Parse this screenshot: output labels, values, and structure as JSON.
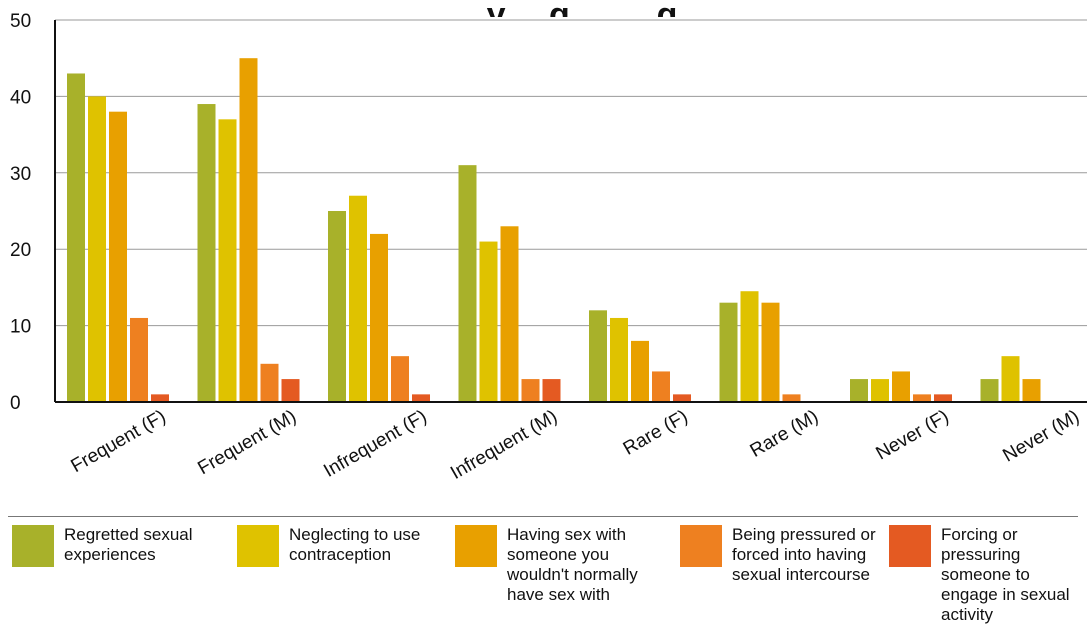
{
  "chart_data": {
    "type": "bar",
    "title": "…y …g … …g",
    "categories": [
      "Frequent (F)",
      "Frequent (M)",
      "Infrequent (F)",
      "Infrequent (M)",
      "Rare (F)",
      "Rare (M)",
      "Never (F)",
      "Never (M)"
    ],
    "series": [
      {
        "name": "Regretted sexual experiences",
        "color": "#a8b12a",
        "values": [
          43,
          39,
          25,
          31,
          12,
          13,
          3,
          3
        ]
      },
      {
        "name": "Neglecting to use contraception",
        "color": "#dfc200",
        "values": [
          40,
          37,
          27,
          21,
          11,
          14.5,
          3,
          6
        ]
      },
      {
        "name": "Having sex with someone you wouldn't normally have sex with",
        "color": "#e8a000",
        "values": [
          38,
          45,
          22,
          23,
          8,
          13,
          4,
          3
        ]
      },
      {
        "name": "Being pressured or forced into having sexual intercourse",
        "color": "#ee8020",
        "values": [
          11,
          5,
          6,
          3,
          4,
          1,
          1,
          0
        ]
      },
      {
        "name": "Forcing or pressuring someone to engage in sexual activity",
        "color": "#e45a22",
        "values": [
          1,
          3,
          1,
          3,
          1,
          0,
          1,
          0
        ]
      }
    ],
    "ylim": [
      0,
      50
    ],
    "yticks": [
      0,
      10,
      20,
      30,
      40,
      50
    ],
    "grid": true,
    "legend_position": "bottom"
  }
}
